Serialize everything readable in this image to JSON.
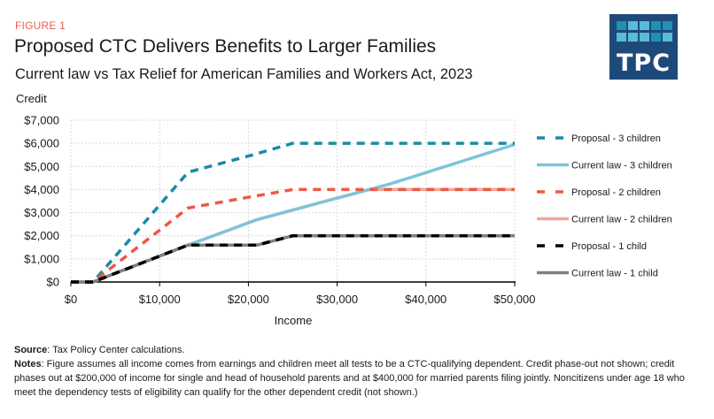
{
  "figure_label": "FIGURE 1",
  "logo": {
    "text": "TPC",
    "background": "#1e4a7a",
    "cell_colors": [
      [
        "#1f91b3",
        "#58bcd6",
        "#58bcd6",
        "#1f91b3",
        "#1f91b3"
      ],
      [
        "#58bcd6",
        "#58bcd6",
        "#58bcd6",
        "#1f91b3",
        "#58bcd6"
      ]
    ]
  },
  "footer": {
    "source_label": "Source",
    "source_text": ": Tax Policy Center calculations.",
    "notes_label": "Notes",
    "notes_text": ": Figure assumes all income comes from earnings and children meet  all tests to be a CTC-qualifying dependent. Credit phase-out not shown; credit phases out at $200,000 of income for single and head of household parents and at $400,000 for married parents filing jointly. Noncitizens under age 18 who meet the dependency tests of eligibility can qualify for the other dependent credit (not shown.)"
  },
  "chart_data": {
    "type": "line",
    "title": "Proposed CTC Delivers Benefits to Larger Families",
    "subtitle": "Current law vs Tax Relief for American Families and Workers Act, 2023",
    "xlabel": "Income",
    "ylabel": "Credit",
    "xlim": [
      0,
      50000
    ],
    "ylim": [
      0,
      7000
    ],
    "x_ticks": [
      0,
      10000,
      20000,
      30000,
      40000,
      50000
    ],
    "x_tick_labels": [
      "$0",
      "$10,000",
      "$20,000",
      "$30,000",
      "$40,000",
      "$50,000"
    ],
    "y_ticks": [
      0,
      1000,
      2000,
      3000,
      4000,
      5000,
      6000,
      7000
    ],
    "y_tick_labels": [
      "$0",
      "$1,000",
      "$2,000",
      "$3,000",
      "$4,000",
      "$5,000",
      "$6,000",
      "$7,000"
    ],
    "grid": true,
    "legend_position": "right",
    "series": [
      {
        "name": "Current law - 2 children",
        "color": "#f4a49a",
        "style": "solid",
        "x": [
          0,
          2500,
          13200,
          21000,
          33600,
          50000
        ],
        "y": [
          0,
          0,
          1600,
          2700,
          4000,
          4000
        ]
      },
      {
        "name": "Current law - 3 children",
        "color": "#7fc4d8",
        "style": "solid",
        "x": [
          0,
          2500,
          13200,
          21000,
          33600,
          36000,
          40000,
          50000
        ],
        "y": [
          0,
          0,
          1600,
          2700,
          4000,
          4250,
          4730,
          5950
        ]
      },
      {
        "name": "Current law - 1 child",
        "color": "#808080",
        "style": "solid",
        "x": [
          0,
          2500,
          13200,
          21000,
          25000,
          50000
        ],
        "y": [
          0,
          0,
          1600,
          1600,
          2000,
          2000
        ]
      },
      {
        "name": "Proposal - 3 children",
        "color": "#1a8aa8",
        "style": "dashed",
        "x": [
          0,
          2500,
          13200,
          20500,
          25000,
          50000
        ],
        "y": [
          0,
          0,
          4750,
          5500,
          6000,
          6000
        ]
      },
      {
        "name": "Proposal - 2 children",
        "color": "#ec5a45",
        "style": "dashed",
        "x": [
          0,
          2500,
          13200,
          20500,
          25000,
          50000
        ],
        "y": [
          0,
          0,
          3200,
          3700,
          4000,
          4000
        ]
      },
      {
        "name": "Proposal - 1 child",
        "color": "#000000",
        "style": "dashed",
        "x": [
          0,
          2500,
          13200,
          21000,
          25000,
          50000
        ],
        "y": [
          0,
          0,
          1600,
          1600,
          2000,
          2000
        ]
      }
    ],
    "legend_order": [
      "Proposal - 3 children",
      "Current law - 3 children",
      "Proposal - 2 children",
      "Current law - 2 children",
      "Proposal - 1 child",
      "Current law - 1 child"
    ]
  }
}
